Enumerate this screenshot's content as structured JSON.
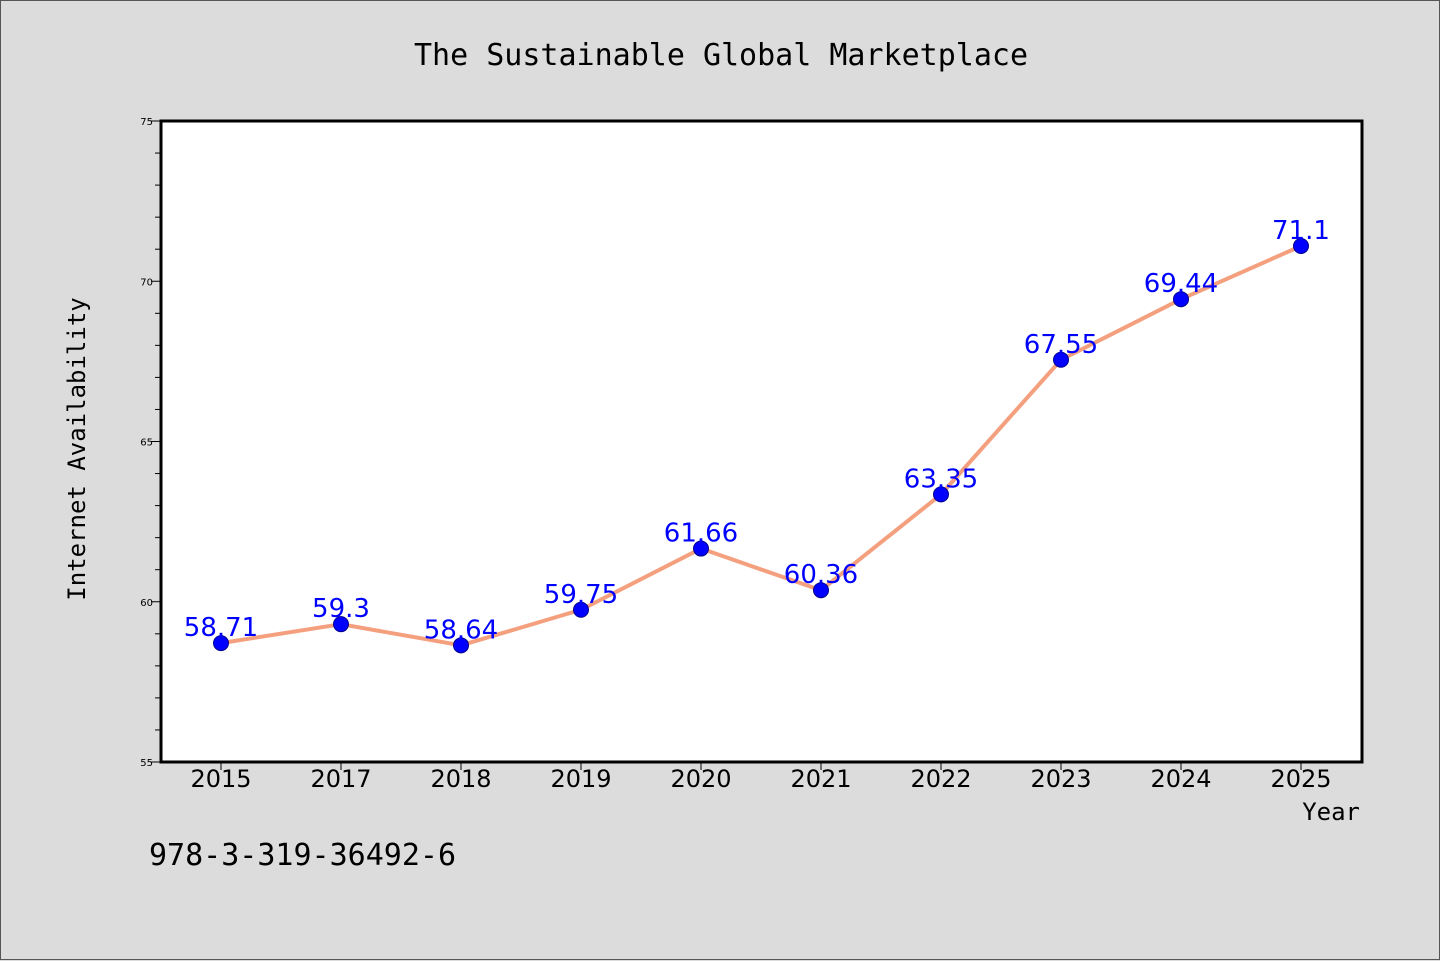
{
  "chart_data": {
    "type": "line",
    "title": "The Sustainable Global Marketplace",
    "xlabel": "Year",
    "ylabel": "Internet Availability",
    "categories": [
      "2015",
      "2017",
      "2018",
      "2019",
      "2020",
      "2021",
      "2022",
      "2023",
      "2024",
      "2025"
    ],
    "series": [
      {
        "values": [
          58.71,
          59.3,
          58.64,
          59.75,
          61.66,
          60.36,
          63.35,
          67.55,
          69.44,
          71.1
        ],
        "labels": [
          "58.71",
          "59.3",
          "58.64",
          "59.75",
          "61.66",
          "60.36",
          "63.35",
          "67.55",
          "69.44",
          "71.1"
        ]
      }
    ],
    "ylim": [
      55,
      75
    ],
    "yticks": [
      55,
      60,
      65,
      70,
      75
    ],
    "grid": false,
    "legend": "none",
    "colors": {
      "line": "#f4a07e",
      "marker": "#0000ff",
      "label": "#0000ff",
      "background": "#dcdcdc",
      "plot_background": "#ffffff"
    }
  },
  "footer": {
    "isbn": "978-3-319-36492-6"
  }
}
